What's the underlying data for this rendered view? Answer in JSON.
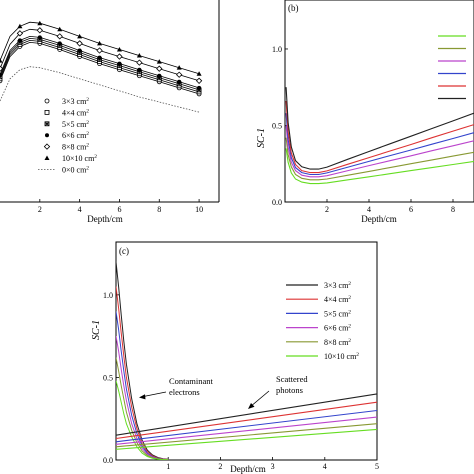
{
  "chart_data": [
    {
      "id": "a",
      "type": "line",
      "panel_label": "",
      "xlabel": "Depth/cm",
      "ylabel": "",
      "xlim": [
        0,
        11
      ],
      "ylim": [
        0,
        1
      ],
      "xticks": [
        2,
        4,
        6,
        8,
        10
      ],
      "xtick_labels": [
        "2",
        "4",
        "6",
        "8",
        "10"
      ],
      "legend_position": "bottom-center",
      "series": [
        {
          "name": "3×3 cm²",
          "marker": "open-circle",
          "x": [
            0,
            0.5,
            1,
            1.5,
            2,
            3,
            4,
            5,
            6,
            7,
            8,
            9,
            10
          ],
          "y": [
            0.6,
            0.72,
            0.77,
            0.79,
            0.785,
            0.755,
            0.72,
            0.685,
            0.655,
            0.625,
            0.595,
            0.565,
            0.535
          ]
        },
        {
          "name": "4×4 cm²",
          "marker": "open-square",
          "x": [
            0,
            0.5,
            1,
            1.5,
            2,
            3,
            4,
            5,
            6,
            7,
            8,
            9,
            10
          ],
          "y": [
            0.61,
            0.73,
            0.78,
            0.8,
            0.795,
            0.765,
            0.73,
            0.695,
            0.665,
            0.635,
            0.605,
            0.575,
            0.545
          ]
        },
        {
          "name": "5×5 cm²",
          "marker": "star-square",
          "x": [
            0,
            0.5,
            1,
            1.5,
            2,
            3,
            4,
            5,
            6,
            7,
            8,
            9,
            10
          ],
          "y": [
            0.62,
            0.74,
            0.79,
            0.81,
            0.805,
            0.775,
            0.74,
            0.705,
            0.675,
            0.645,
            0.615,
            0.585,
            0.555
          ]
        },
        {
          "name": "6×6 cm²",
          "marker": "filled-circle",
          "x": [
            0,
            0.5,
            1,
            1.5,
            2,
            3,
            4,
            5,
            6,
            7,
            8,
            9,
            10
          ],
          "y": [
            0.63,
            0.75,
            0.8,
            0.82,
            0.815,
            0.785,
            0.75,
            0.715,
            0.685,
            0.655,
            0.625,
            0.595,
            0.565
          ]
        },
        {
          "name": "8×8 cm²",
          "marker": "open-diamond",
          "x": [
            0,
            0.5,
            1,
            1.5,
            2,
            3,
            4,
            5,
            6,
            7,
            8,
            9,
            10
          ],
          "y": [
            0.66,
            0.78,
            0.835,
            0.855,
            0.85,
            0.82,
            0.785,
            0.75,
            0.72,
            0.69,
            0.66,
            0.63,
            0.6
          ]
        },
        {
          "name": "10×10 cm²",
          "marker": "filled-triangle",
          "x": [
            0,
            0.5,
            1,
            1.5,
            2,
            3,
            4,
            5,
            6,
            7,
            8,
            9,
            10
          ],
          "y": [
            0.7,
            0.82,
            0.87,
            0.89,
            0.885,
            0.855,
            0.82,
            0.785,
            0.755,
            0.725,
            0.695,
            0.665,
            0.635
          ]
        },
        {
          "name": "0×0 cm²",
          "marker": "dotted-line",
          "x": [
            0,
            0.5,
            1,
            1.5,
            2,
            3,
            4,
            5,
            6,
            7,
            8,
            9,
            10
          ],
          "y": [
            0.5,
            0.61,
            0.655,
            0.67,
            0.665,
            0.64,
            0.61,
            0.58,
            0.55,
            0.52,
            0.495,
            0.47,
            0.445
          ]
        }
      ]
    },
    {
      "id": "b",
      "type": "line",
      "panel_label": "(b)",
      "xlabel": "Depth/cm",
      "ylabel": "SC-1",
      "xlim": [
        0,
        9
      ],
      "ylim": [
        0,
        1.32
      ],
      "xticks": [
        2,
        4,
        6,
        8
      ],
      "xtick_labels": [
        "2",
        "4",
        "6",
        "8"
      ],
      "yticks": [
        0,
        0.5,
        1.0
      ],
      "ytick_labels": [
        "0.0",
        "0.5",
        "1.0"
      ],
      "legend_position": "right",
      "series": [
        {
          "name": "",
          "color": "#66dd22",
          "x": [
            0.05,
            0.15,
            0.3,
            0.5,
            0.8,
            1.2,
            1.6,
            2,
            3,
            4,
            5,
            6,
            7,
            8,
            9
          ],
          "y": [
            0.35,
            0.26,
            0.19,
            0.15,
            0.13,
            0.12,
            0.12,
            0.125,
            0.145,
            0.165,
            0.185,
            0.205,
            0.225,
            0.245,
            0.265
          ]
        },
        {
          "name": "",
          "color": "#889933",
          "x": [
            0.05,
            0.15,
            0.3,
            0.5,
            0.8,
            1.2,
            1.6,
            2,
            3,
            4,
            5,
            6,
            7,
            8,
            9
          ],
          "y": [
            0.42,
            0.31,
            0.23,
            0.18,
            0.155,
            0.145,
            0.145,
            0.15,
            0.175,
            0.2,
            0.225,
            0.25,
            0.275,
            0.3,
            0.325
          ]
        },
        {
          "name": "",
          "color": "#bb44cc",
          "x": [
            0.05,
            0.15,
            0.3,
            0.5,
            0.8,
            1.2,
            1.6,
            2,
            3,
            4,
            5,
            6,
            7,
            8,
            9
          ],
          "y": [
            0.5,
            0.36,
            0.26,
            0.205,
            0.175,
            0.165,
            0.165,
            0.172,
            0.205,
            0.238,
            0.27,
            0.302,
            0.335,
            0.367,
            0.4
          ]
        },
        {
          "name": "",
          "color": "#3344cc",
          "x": [
            0.05,
            0.15,
            0.3,
            0.5,
            0.8,
            1.2,
            1.6,
            2,
            3,
            4,
            5,
            6,
            7,
            8,
            9
          ],
          "y": [
            0.58,
            0.41,
            0.29,
            0.225,
            0.192,
            0.18,
            0.18,
            0.19,
            0.228,
            0.265,
            0.303,
            0.34,
            0.378,
            0.415,
            0.453
          ]
        },
        {
          "name": "",
          "color": "#dd3333",
          "x": [
            0.05,
            0.15,
            0.3,
            0.5,
            0.8,
            1.2,
            1.6,
            2,
            3,
            4,
            5,
            6,
            7,
            8,
            9
          ],
          "y": [
            0.66,
            0.46,
            0.32,
            0.245,
            0.205,
            0.192,
            0.192,
            0.203,
            0.247,
            0.29,
            0.333,
            0.376,
            0.42,
            0.463,
            0.506
          ]
        },
        {
          "name": "",
          "color": "#222222",
          "x": [
            0.05,
            0.15,
            0.3,
            0.5,
            0.8,
            1.2,
            1.6,
            2,
            3,
            4,
            5,
            6,
            7,
            8,
            9
          ],
          "y": [
            0.75,
            0.52,
            0.36,
            0.27,
            0.23,
            0.215,
            0.215,
            0.228,
            0.28,
            0.33,
            0.38,
            0.43,
            0.48,
            0.53,
            0.58
          ]
        }
      ]
    },
    {
      "id": "c",
      "type": "line",
      "panel_label": "(c)",
      "xlabel": "Depth/cm",
      "ylabel": "SC-1",
      "xlim": [
        0,
        5
      ],
      "ylim": [
        0,
        1.32
      ],
      "xticks": [
        1,
        2,
        3,
        4,
        5
      ],
      "xtick_labels": [
        "1",
        "2",
        "3",
        "4",
        "5"
      ],
      "yticks": [
        0,
        0.5,
        1.0
      ],
      "ytick_labels": [
        "0.0",
        "0.5",
        "1.0"
      ],
      "legend_position": "top-right",
      "annotations": [
        {
          "text_lines": [
            "Contaminant",
            "electrons"
          ]
        },
        {
          "text_lines": [
            "Scattered",
            "photons"
          ]
        }
      ],
      "electron_series": [
        {
          "color": "#222222",
          "x": [
            0,
            0.05,
            0.1,
            0.15,
            0.2,
            0.3,
            0.4,
            0.5,
            0.6,
            0.7,
            0.8,
            0.9,
            1.0
          ],
          "y": [
            1.2,
            1.05,
            0.88,
            0.72,
            0.58,
            0.37,
            0.22,
            0.12,
            0.06,
            0.03,
            0.015,
            0.008,
            0.004
          ]
        },
        {
          "color": "#dd3333",
          "x": [
            0,
            0.05,
            0.1,
            0.15,
            0.2,
            0.3,
            0.4,
            0.5,
            0.6,
            0.7,
            0.8,
            0.9,
            1.0
          ],
          "y": [
            1.05,
            0.92,
            0.77,
            0.63,
            0.5,
            0.32,
            0.19,
            0.1,
            0.05,
            0.025,
            0.012,
            0.006,
            0.003
          ]
        },
        {
          "color": "#3344cc",
          "x": [
            0,
            0.05,
            0.1,
            0.15,
            0.2,
            0.3,
            0.4,
            0.5,
            0.6,
            0.7,
            0.8,
            0.9,
            1.0
          ],
          "y": [
            0.9,
            0.79,
            0.66,
            0.54,
            0.43,
            0.27,
            0.16,
            0.085,
            0.042,
            0.02,
            0.01,
            0.005,
            0.002
          ]
        },
        {
          "color": "#bb44cc",
          "x": [
            0,
            0.05,
            0.1,
            0.15,
            0.2,
            0.3,
            0.4,
            0.5,
            0.6,
            0.7,
            0.8,
            0.9,
            1.0
          ],
          "y": [
            0.75,
            0.66,
            0.55,
            0.45,
            0.36,
            0.22,
            0.13,
            0.07,
            0.035,
            0.017,
            0.008,
            0.004,
            0.002
          ]
        },
        {
          "color": "#889933",
          "x": [
            0,
            0.05,
            0.1,
            0.15,
            0.2,
            0.3,
            0.4,
            0.5,
            0.6,
            0.7,
            0.8,
            0.9,
            1.0
          ],
          "y": [
            0.62,
            0.54,
            0.45,
            0.37,
            0.29,
            0.18,
            0.105,
            0.055,
            0.028,
            0.014,
            0.007,
            0.003,
            0.001
          ]
        },
        {
          "color": "#66dd22",
          "x": [
            0,
            0.05,
            0.1,
            0.15,
            0.2,
            0.3,
            0.4,
            0.5,
            0.6,
            0.7,
            0.8,
            0.9,
            1.0
          ],
          "y": [
            0.48,
            0.42,
            0.35,
            0.28,
            0.22,
            0.14,
            0.08,
            0.042,
            0.021,
            0.01,
            0.005,
            0.002,
            0.001
          ]
        }
      ],
      "series": [
        {
          "name": "3×3 cm²",
          "color": "#222222",
          "x": [
            0,
            5
          ],
          "y": [
            0.15,
            0.4
          ]
        },
        {
          "name": "4×4 cm²",
          "color": "#dd3333",
          "x": [
            0,
            5
          ],
          "y": [
            0.13,
            0.35
          ]
        },
        {
          "name": "5×5 cm²",
          "color": "#3344cc",
          "x": [
            0,
            5
          ],
          "y": [
            0.11,
            0.3
          ]
        },
        {
          "name": "6×6 cm²",
          "color": "#bb44cc",
          "x": [
            0,
            5
          ],
          "y": [
            0.095,
            0.26
          ]
        },
        {
          "name": "8×8 cm²",
          "color": "#889933",
          "x": [
            0,
            5
          ],
          "y": [
            0.08,
            0.22
          ]
        },
        {
          "name": "10×10 cm²",
          "color": "#66dd22",
          "x": [
            0,
            5
          ],
          "y": [
            0.065,
            0.185
          ]
        }
      ]
    }
  ]
}
